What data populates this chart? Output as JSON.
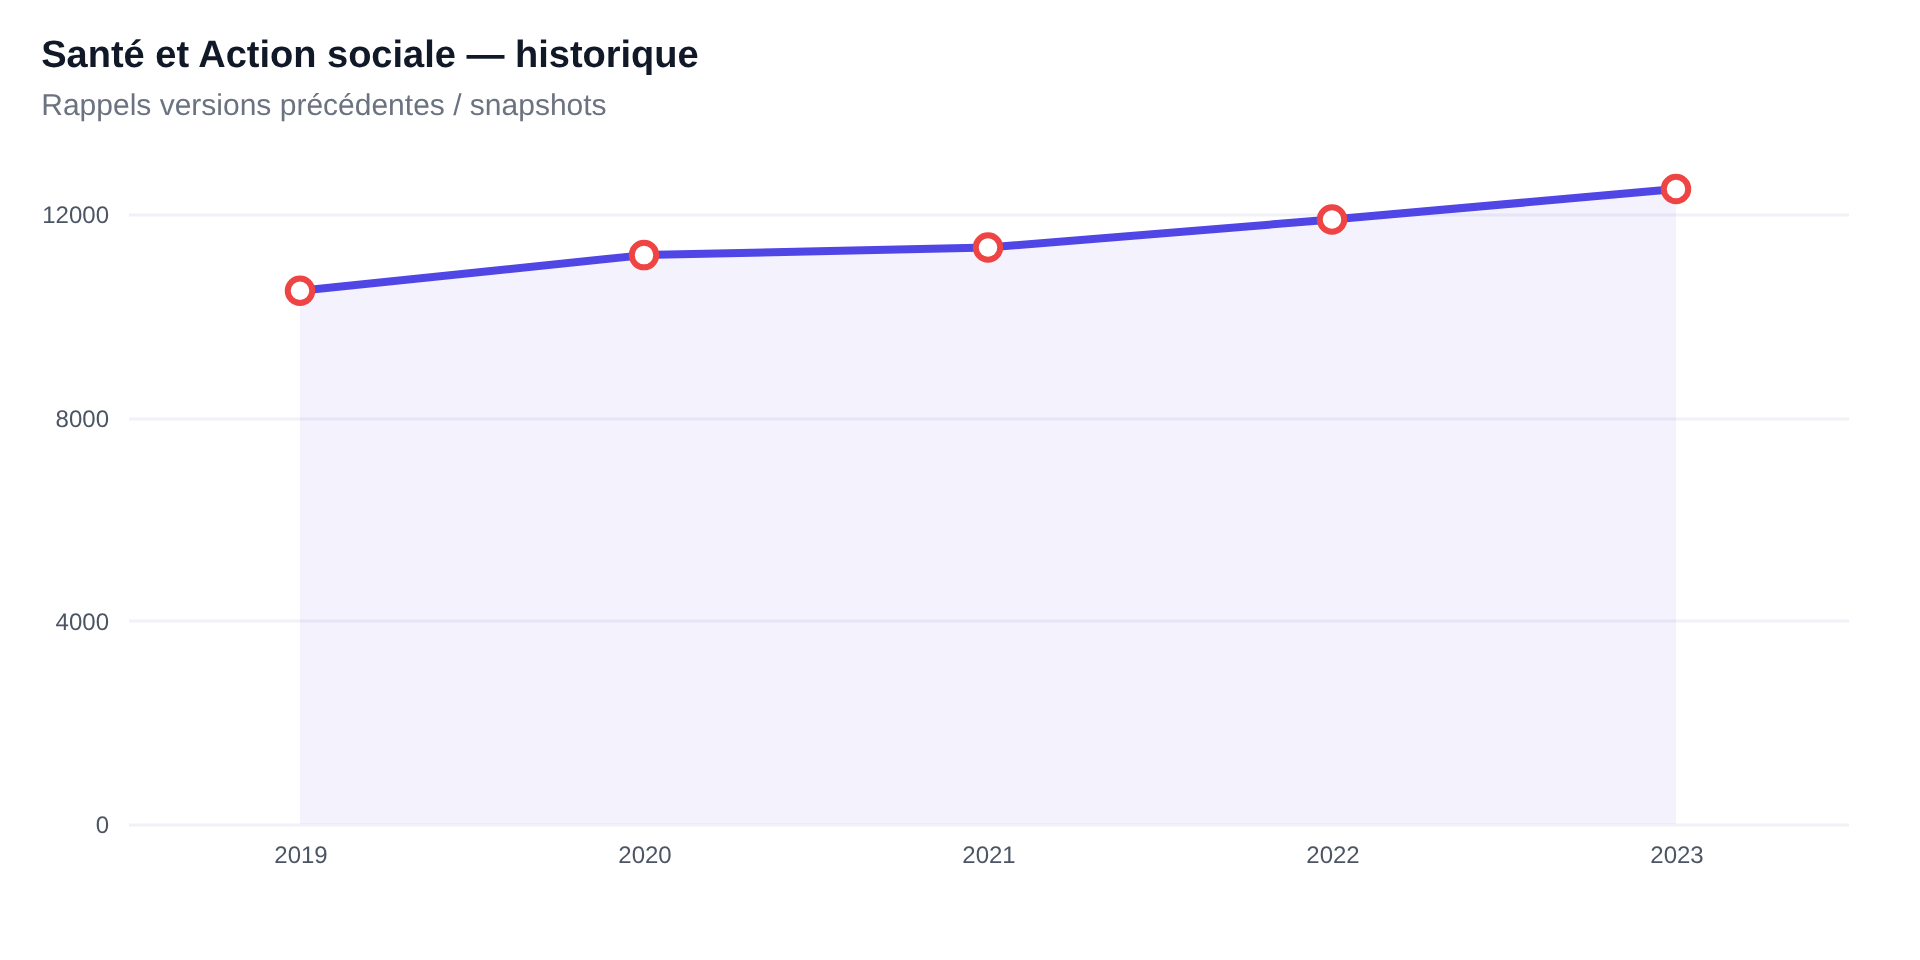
{
  "chart_data": {
    "type": "area",
    "title": "Santé et Action sociale — historique",
    "subtitle": "Rappels versions précédentes / snapshots",
    "categories": [
      "2019",
      "2020",
      "2021",
      "2022",
      "2023"
    ],
    "series": [
      {
        "color": "#4f46e5",
        "values": [
          10500,
          11200,
          11350,
          11900,
          12500
        ]
      }
    ],
    "ylim": [
      0,
      12600
    ],
    "yticks": [
      0,
      4000,
      8000,
      12000
    ],
    "grid": "y",
    "marker": "circle"
  }
}
